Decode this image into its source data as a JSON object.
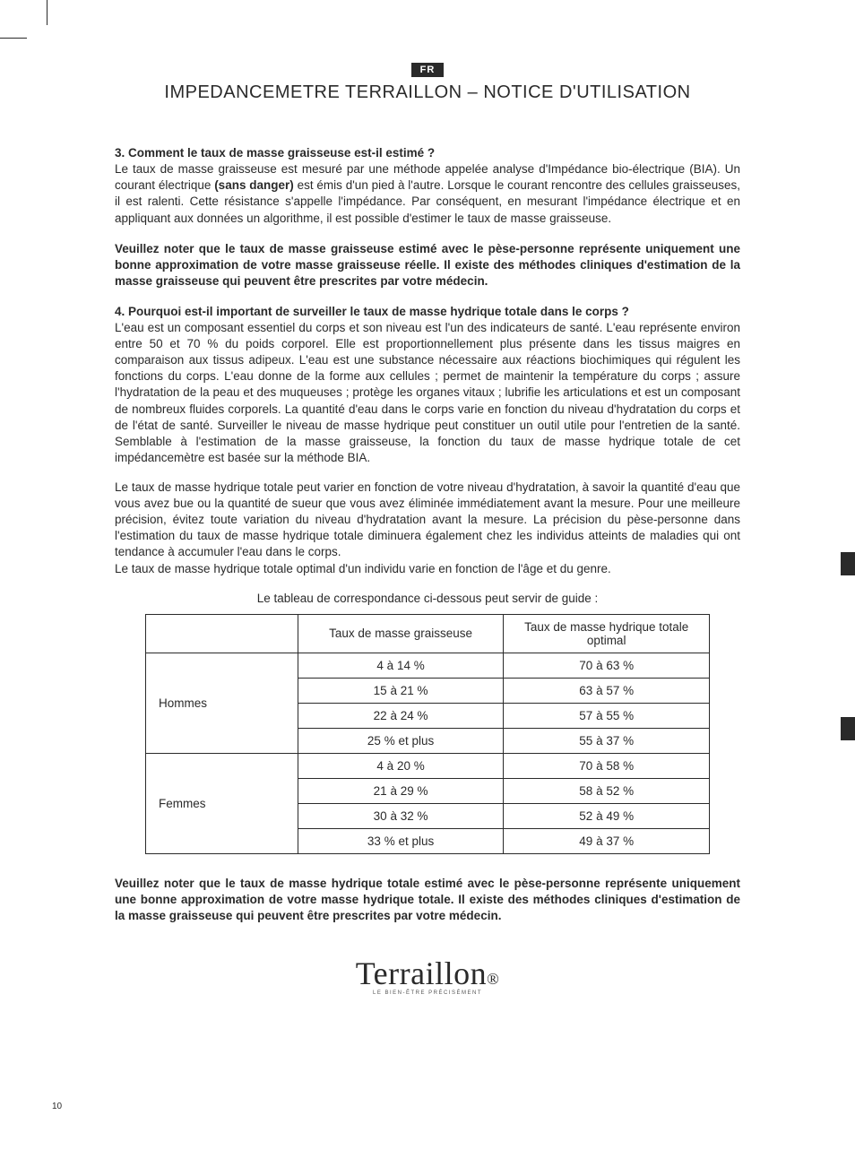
{
  "lang_badge": "FR",
  "doc_title": "IMPEDANCEMETRE TERRAILLON – NOTICE D'UTILISATION",
  "section3": {
    "heading": "3. Comment le taux de masse graisseuse est-il estimé ?",
    "para": "Le taux de masse graisseuse est mesuré par une méthode appelée analyse d'Impédance bio-électrique (BIA). Un courant électrique (sans danger) est émis d'un pied à l'autre. Lorsque le courant rencontre des cellules graisseuses, il est ralenti. Cette résistance s'appelle l'impédance. Par conséquent, en mesurant l'impédance électrique et en appliquant aux données un algorithme, il est possible d'estimer le taux de masse graisseuse.",
    "note": "Veuillez noter que le taux de masse graisseuse estimé avec le pèse-personne représente uniquement une bonne approximation de votre masse graisseuse réelle. Il existe des méthodes cliniques d'estimation de la masse graisseuse qui peuvent être prescrites par votre médecin."
  },
  "section4": {
    "heading": "4. Pourquoi est-il important de surveiller le taux de masse hydrique totale dans le corps ?",
    "para1": "L'eau est un composant essentiel du corps et son niveau est l'un des indicateurs de santé. L'eau représente environ entre 50 et 70 % du poids corporel. Elle est proportionnellement plus présente dans les tissus maigres en comparaison aux tissus adipeux. L'eau est une substance nécessaire aux réactions biochimiques qui régulent les fonctions du corps. L'eau donne de la forme aux cellules ; permet de maintenir la température du corps ; assure l'hydratation de la peau et des muqueuses ; protège les organes vitaux ; lubrifie les articulations et est un composant de nombreux fluides corporels. La quantité d'eau dans le corps varie en fonction du niveau d'hydratation du corps et de l'état de santé. Surveiller le niveau de masse hydrique peut constituer un outil utile pour l'entretien de la santé. Semblable à l'estimation de la masse graisseuse, la fonction du taux de masse hydrique totale de cet impédancemètre est basée sur la méthode BIA.",
    "para2": "Le taux de masse hydrique totale peut varier en fonction de votre niveau d'hydratation, à savoir la quantité d'eau que vous avez bue ou la quantité de sueur que vous avez éliminée immédiatement avant la mesure. Pour une meilleure précision, évitez toute variation du niveau d'hydratation avant la mesure. La précision du pèse-personne dans l'estimation du taux de masse hydrique totale diminuera également chez les individus atteints de maladies qui ont tendance à accumuler l'eau dans le corps.",
    "para3": "Le taux de masse hydrique totale optimal d'un individu varie en fonction de l'âge et du genre."
  },
  "table": {
    "intro": "Le tableau de correspondance ci-dessous peut servir de guide :",
    "headers": [
      "",
      "Taux de masse graisseuse",
      "Taux de masse hydrique totale optimal"
    ],
    "groups": [
      {
        "label": "Hommes",
        "rows": [
          [
            "4 à 14 %",
            "70 à 63 %"
          ],
          [
            "15 à 21 %",
            "63 à 57 %"
          ],
          [
            "22 à 24 %",
            "57 à 55 %"
          ],
          [
            "25 % et plus",
            "55 à 37 %"
          ]
        ]
      },
      {
        "label": "Femmes",
        "rows": [
          [
            "4 à 20 %",
            "70 à 58 %"
          ],
          [
            "21 à 29 %",
            "58 à 52 %"
          ],
          [
            "30 à 32 %",
            "52 à 49 %"
          ],
          [
            "33 % et plus",
            "49 à 37 %"
          ]
        ]
      }
    ]
  },
  "final_note": "Veuillez noter que le taux de masse hydrique totale estimé avec le pèse-personne représente uniquement une bonne approximation de votre masse hydrique totale. Il existe des méthodes cliniques d'estimation de la masse graisseuse qui peuvent être prescrites par votre médecin.",
  "brand": {
    "name": "Terraillon",
    "tagline": "LE BIEN-ÊTRE PRÉCISÉMENT"
  },
  "page_number": "10",
  "colors": {
    "text": "#2a2a2a",
    "bg": "#ffffff"
  }
}
